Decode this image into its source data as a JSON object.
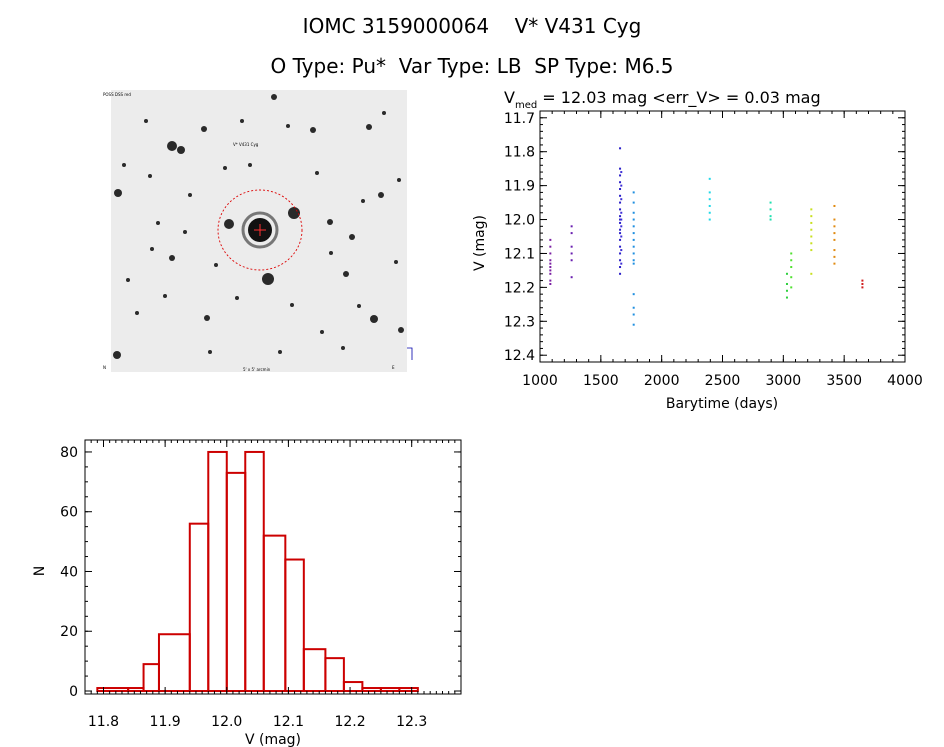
{
  "header": {
    "title_line1": "IOMC 3159000064    V* V431 Cyg",
    "title_line2": "O Type: Pu*  Var Type: LB  SP Type: M6.5"
  },
  "colors": {
    "histogram": "#cc0000",
    "circle": "#dd0000",
    "axis": "#000000"
  },
  "chart_data": [
    {
      "type": "scatter",
      "title_prefix": "V",
      "title_subscript": "med",
      "title_rest": " = 12.03 mag <err_V> = 0.03 mag",
      "xlabel": "Barytime (days)",
      "ylabel": "V (mag)",
      "xlim": [
        1000,
        4000
      ],
      "ylim": [
        12.42,
        11.68
      ],
      "y_inverted": true,
      "xticks": [
        1000,
        1500,
        2000,
        2500,
        3000,
        3500,
        4000
      ],
      "yticks": [
        "11.7",
        "11.8",
        "11.9",
        "12.0",
        "12.1",
        "12.2",
        "12.3",
        "12.4"
      ],
      "grid": false,
      "groups": [
        {
          "x": 1085,
          "y": [
            12.06,
            12.08,
            12.1,
            12.12,
            12.13,
            12.14,
            12.15,
            12.16,
            12.18,
            12.19
          ],
          "color": "#7a1fa2"
        },
        {
          "x": 1260,
          "y": [
            12.02,
            12.04,
            12.08,
            12.1,
            12.12,
            12.17
          ],
          "color": "#6a1fb0"
        },
        {
          "x": 1658,
          "y": [
            11.79,
            11.85,
            11.87,
            11.89,
            11.91,
            11.93,
            11.95,
            11.97,
            11.99,
            12.0,
            12.01,
            12.03,
            12.04,
            12.06,
            12.08,
            12.1,
            12.12,
            12.14,
            12.16
          ],
          "color": "#2a1fc8"
        },
        {
          "x": 1668,
          "y": [
            11.86,
            11.9,
            11.94,
            11.98,
            12.0,
            12.02,
            12.05,
            12.09,
            12.13
          ],
          "color": "#3f2fd6"
        },
        {
          "x": 1770,
          "y": [
            11.92,
            11.95,
            11.98,
            12.0,
            12.02,
            12.04,
            12.06,
            12.08,
            12.1,
            12.12,
            12.13,
            12.22,
            12.26,
            12.28,
            12.31
          ],
          "color": "#1f8fe0"
        },
        {
          "x": 2395,
          "y": [
            11.88,
            11.92,
            11.94,
            11.96,
            11.98,
            12.0
          ],
          "color": "#20d8e8"
        },
        {
          "x": 2895,
          "y": [
            11.95,
            11.97,
            11.99,
            12.0
          ],
          "color": "#20e0b0"
        },
        {
          "x": 3030,
          "y": [
            12.16,
            12.19,
            12.21,
            12.23
          ],
          "color": "#30d040"
        },
        {
          "x": 3065,
          "y": [
            12.1,
            12.12,
            12.14,
            12.17,
            12.2
          ],
          "color": "#50e030"
        },
        {
          "x": 3230,
          "y": [
            11.97,
            11.99,
            12.01,
            12.03,
            12.05,
            12.07,
            12.09,
            12.16
          ],
          "color": "#c8e020"
        },
        {
          "x": 3420,
          "y": [
            11.96,
            12.0,
            12.02,
            12.04,
            12.06,
            12.09,
            12.11,
            12.13
          ],
          "color": "#e08a10"
        },
        {
          "x": 3650,
          "y": [
            12.18,
            12.19,
            12.2
          ],
          "color": "#d01e1e"
        }
      ]
    },
    {
      "type": "bar",
      "xlabel": "V (mag)",
      "ylabel": "N",
      "xlim": [
        11.77,
        12.38
      ],
      "ylim": [
        -1,
        84
      ],
      "xticks": [
        "11.8",
        "11.9",
        "12.0",
        "12.1",
        "12.2",
        "12.3"
      ],
      "yticks": [
        "0",
        "20",
        "40",
        "60",
        "80"
      ],
      "grid": false,
      "bins": [
        {
          "x0": 11.79,
          "x1": 11.84,
          "n": 1
        },
        {
          "x0": 11.84,
          "x1": 11.865,
          "n": 1
        },
        {
          "x0": 11.865,
          "x1": 11.89,
          "n": 9
        },
        {
          "x0": 11.89,
          "x1": 11.94,
          "n": 19
        },
        {
          "x0": 11.94,
          "x1": 11.97,
          "n": 56
        },
        {
          "x0": 11.97,
          "x1": 12.0,
          "n": 80
        },
        {
          "x0": 12.0,
          "x1": 12.03,
          "n": 73
        },
        {
          "x0": 12.03,
          "x1": 12.06,
          "n": 80
        },
        {
          "x0": 12.06,
          "x1": 12.095,
          "n": 52
        },
        {
          "x0": 12.095,
          "x1": 12.125,
          "n": 44
        },
        {
          "x0": 12.125,
          "x1": 12.16,
          "n": 14
        },
        {
          "x0": 12.16,
          "x1": 12.19,
          "n": 11
        },
        {
          "x0": 12.19,
          "x1": 12.22,
          "n": 3
        },
        {
          "x0": 12.22,
          "x1": 12.25,
          "n": 1
        },
        {
          "x0": 12.25,
          "x1": 12.28,
          "n": 1
        },
        {
          "x0": 12.28,
          "x1": 12.31,
          "n": 1
        }
      ]
    }
  ],
  "image": {
    "alt": "star field finding chart",
    "labels": {
      "top_left": "POSS DSS red",
      "target": "V* V431 Cyg",
      "bottom_center": "5' x 5' arcmin",
      "bottom_left": "N",
      "bottom_right": "E"
    }
  }
}
